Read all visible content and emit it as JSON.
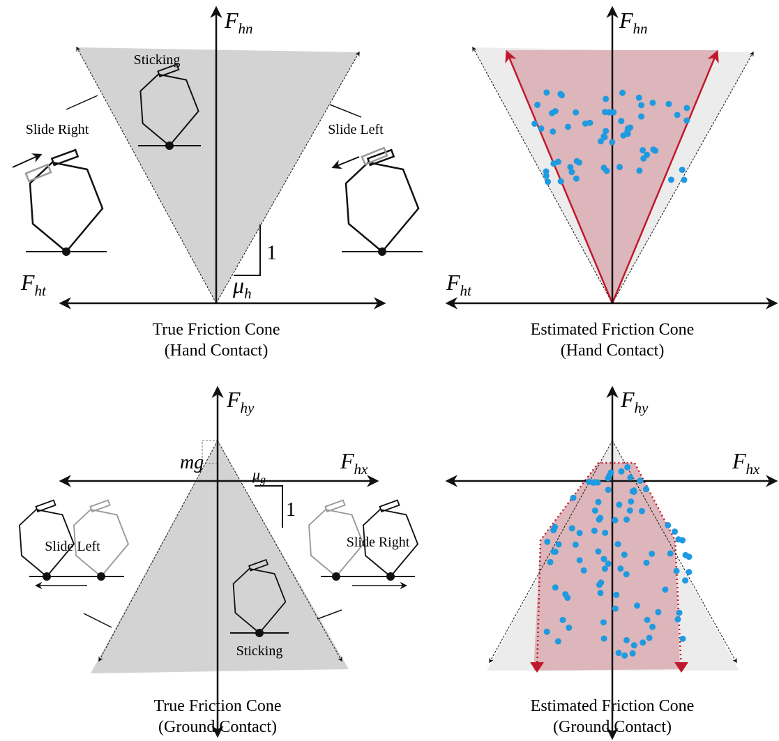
{
  "panels": [
    {
      "vertical_axis": {
        "base": "F",
        "sub": "hn"
      },
      "horizontal_axis": {
        "base": "F",
        "sub": "ht"
      },
      "annotations": [
        "Sticking",
        "Slide Right",
        "Slide Left",
        "1"
      ],
      "slope_label": {
        "base": "μ",
        "sub": "h"
      },
      "caption": [
        "True Friction Cone",
        "(Hand Contact)"
      ]
    },
    {
      "vertical_axis": {
        "base": "F",
        "sub": "hn"
      },
      "horizontal_axis": {
        "base": "F",
        "sub": "ht"
      },
      "caption": [
        "Estimated Friction Cone",
        "(Hand Contact)"
      ]
    },
    {
      "vertical_axis": {
        "base": "F",
        "sub": "hy"
      },
      "horizontal_axis": {
        "base": "F",
        "sub": "hx"
      },
      "annotations": [
        "mg",
        "Slide Left",
        "Slide Right",
        "Sticking",
        "1"
      ],
      "slope_label": {
        "base": "μ",
        "sub": "g"
      },
      "caption": [
        "True Friction Cone",
        "(Ground Contact)"
      ]
    },
    {
      "vertical_axis": {
        "base": "F",
        "sub": "hy"
      },
      "horizontal_axis": {
        "base": "F",
        "sub": "hx"
      },
      "caption": [
        "Estimated Friction Cone",
        "(Ground Contact)"
      ]
    }
  ]
}
